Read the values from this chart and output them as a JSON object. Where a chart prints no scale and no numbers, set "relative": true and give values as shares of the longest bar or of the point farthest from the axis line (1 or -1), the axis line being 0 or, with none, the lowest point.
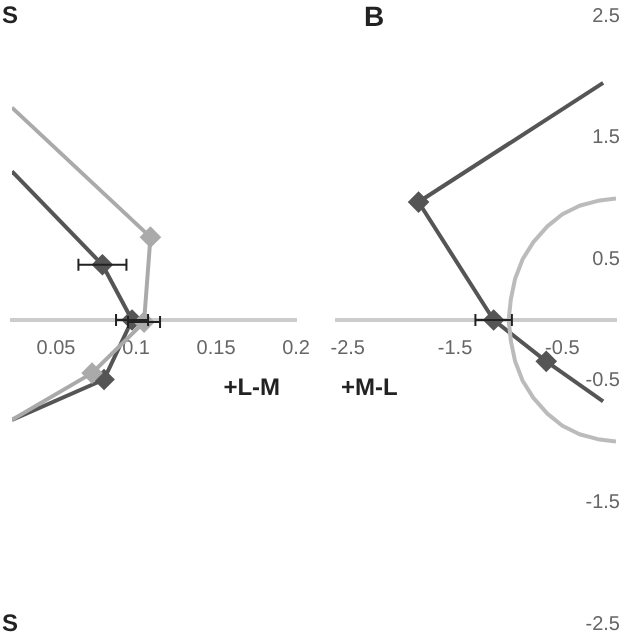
{
  "chart_data": [
    {
      "type": "line",
      "relative": true,
      "xlabel": "+L-M",
      "annotations": [
        "S",
        "S"
      ],
      "xlim": [
        0.0225,
        0.2
      ],
      "xticks": [
        0.05,
        0.1,
        0.15,
        0.2
      ],
      "grid": false,
      "legend": false,
      "line_style": "solid",
      "series": [
        {
          "color": "#aaaaaa",
          "x": [
            0.0225,
            0.109
          ],
          "values": [
            1,
            0.39
          ]
        },
        {
          "color": "#aaaaaa",
          "marker": "diamond",
          "x": [
            0.109,
            0.105,
            0.0725
          ],
          "values": [
            0.39,
            -0.01,
            -0.25
          ],
          "xerrors": [
            null,
            0.01,
            null
          ]
        },
        {
          "color": "#aaaaaa",
          "x": [
            0.0725,
            0.0225
          ],
          "values": [
            -0.25,
            -0.47
          ]
        },
        {
          "color": "#555555",
          "x": [
            0.0225,
            0.079
          ],
          "values": [
            0.7,
            0.26
          ]
        },
        {
          "color": "#555555",
          "marker": "diamond",
          "x": [
            0.079,
            0.0975,
            0.08
          ],
          "values": [
            0.26,
            0,
            -0.28
          ],
          "xerrors": [
            0.015,
            0.01,
            null
          ]
        },
        {
          "color": "#555555",
          "x": [
            0.08,
            0.0225
          ],
          "values": [
            -0.28,
            -0.47
          ]
        }
      ]
    },
    {
      "type": "line",
      "title": "B",
      "xlabel": "+M-L",
      "xlim": [
        -2.6,
        0
      ],
      "xticks": [
        -2.5,
        -1.5,
        -0.5
      ],
      "ylim": [
        -2.5,
        2.5
      ],
      "yticks": [
        2.5,
        1.5,
        0.5,
        -0.5,
        -1.5,
        -2.5
      ],
      "grid": false,
      "legend": false,
      "line_style": "solid",
      "series": [
        {
          "color": "#bbbbbb",
          "x": [
            0,
            -0.17,
            -0.34,
            -0.5,
            -0.64,
            -0.77,
            -0.87,
            -0.94,
            -0.98,
            -1,
            -0.98,
            -0.94,
            -0.87,
            -0.77,
            -0.64,
            -0.5,
            -0.34,
            -0.17,
            0
          ],
          "values": [
            1,
            0.98,
            0.94,
            0.87,
            0.77,
            0.64,
            0.5,
            0.34,
            0.17,
            0,
            -0.17,
            -0.34,
            -0.5,
            -0.64,
            -0.77,
            -0.87,
            -0.94,
            -0.98,
            -1
          ]
        },
        {
          "color": "#555555",
          "x": [
            -0.12,
            -1.84
          ],
          "values": [
            1.95,
            0.97
          ]
        },
        {
          "color": "#555555",
          "marker": "diamond",
          "x": [
            -1.84,
            -1.14,
            -0.65
          ],
          "values": [
            0.97,
            0,
            -0.34
          ],
          "xerrors": [
            null,
            0.17,
            null
          ]
        },
        {
          "color": "#555555",
          "x": [
            -0.65,
            -0.12
          ],
          "values": [
            -0.34,
            -0.67
          ]
        }
      ]
    }
  ]
}
